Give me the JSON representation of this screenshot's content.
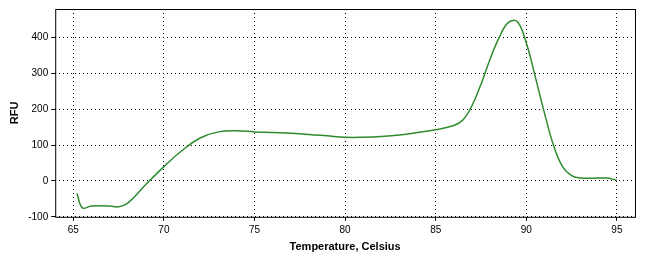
{
  "chart_data": {
    "type": "line",
    "x_label": "Temperature, Celsius",
    "y_label": "RFU",
    "x": [
      65.2,
      65.5,
      66,
      67,
      67.5,
      68,
      69,
      70,
      71,
      72,
      73,
      74,
      75,
      76,
      77,
      78,
      79,
      80,
      81,
      82,
      83,
      84,
      85,
      86,
      86.5,
      87,
      87.5,
      88,
      88.5,
      89,
      89.5,
      90,
      90.5,
      91,
      91.5,
      92,
      92.5,
      93,
      94,
      94.5,
      95
    ],
    "values": [
      -35,
      -75,
      -70,
      -70,
      -72,
      -62,
      -10,
      40,
      85,
      120,
      137,
      140,
      137,
      135,
      133,
      130,
      126,
      122,
      122,
      124,
      128,
      135,
      143,
      155,
      170,
      210,
      270,
      340,
      400,
      442,
      445,
      385,
      290,
      190,
      100,
      40,
      15,
      8,
      8,
      8,
      2
    ],
    "color": "#2e8b2e",
    "xlim": [
      64,
      96
    ],
    "xticks": [
      65,
      70,
      75,
      80,
      85,
      90,
      95
    ],
    "ylim": [
      -100,
      480
    ],
    "yticks": [
      -100,
      0,
      100,
      200,
      300,
      400
    ],
    "grid": true
  }
}
